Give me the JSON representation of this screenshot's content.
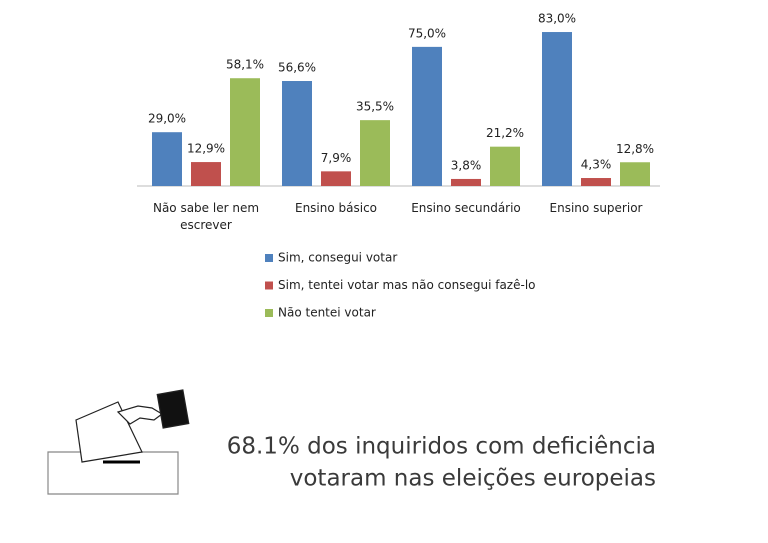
{
  "chart_data": {
    "type": "bar",
    "categories": [
      "Não sabe ler nem escrever",
      "Ensino básico",
      "Ensino secundário",
      "Ensino superior"
    ],
    "series": [
      {
        "name": "Sim, consegui votar",
        "color": "#4f81bd",
        "values": [
          29.0,
          56.6,
          75.0,
          83.0
        ],
        "value_labels": [
          "29,0%",
          "56,6%",
          "75,0%",
          "83,0%"
        ]
      },
      {
        "name": "Sim, tentei votar mas não consegui fazê-lo",
        "color": "#c0504d",
        "values": [
          12.9,
          7.9,
          3.8,
          4.3
        ],
        "value_labels": [
          "12,9%",
          "7,9%",
          "3,8%",
          "4,3%"
        ]
      },
      {
        "name": "Não tentei votar",
        "color": "#9bbb59",
        "values": [
          58.1,
          35.5,
          21.2,
          12.8
        ],
        "value_labels": [
          "58,1%",
          "35,5%",
          "21,2%",
          "12,8%"
        ]
      }
    ],
    "annotations": [
      "68.1% dos inquiridos com deficiência",
      "votaram nas eleições europeias"
    ]
  }
}
